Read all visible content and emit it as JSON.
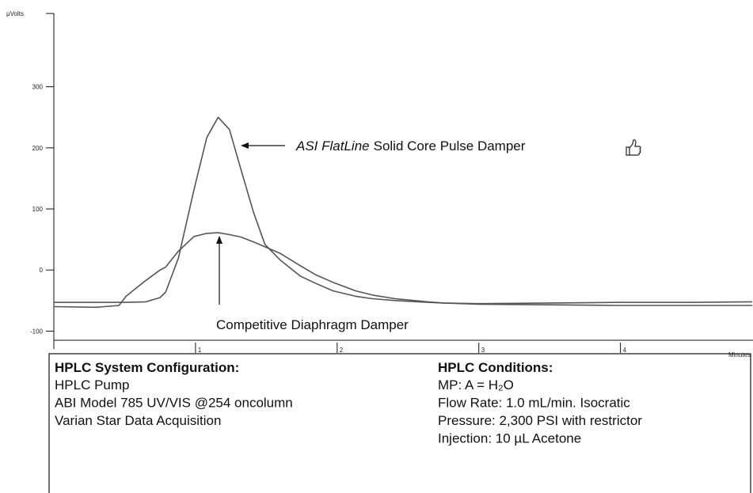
{
  "chart_data": {
    "type": "line",
    "ylabel": "µVolts",
    "xlabel": "Minutes",
    "x": [
      0,
      0.3,
      0.46,
      0.51,
      0.65,
      0.75,
      0.79,
      0.88,
      0.99,
      1.08,
      1.16,
      1.24,
      1.32,
      1.41,
      1.49,
      1.6,
      1.74,
      1.85,
      1.97,
      2.13,
      2.25,
      2.41,
      2.64,
      2.75,
      3,
      3.5,
      4,
      4.5,
      4.93
    ],
    "series": [
      {
        "color": "#555555",
        "values": [
          -53,
          -53,
          -53,
          -53,
          -52,
          -45,
          -36,
          20,
          132,
          217,
          250,
          230,
          165,
          94,
          42,
          16,
          -10,
          -22,
          -34,
          -43,
          -47,
          -50,
          -53,
          -54,
          -55,
          -54,
          -53,
          -53,
          -52
        ]
      },
      {
        "color": "#555555",
        "values": [
          -60,
          -61,
          -58,
          -43,
          -17,
          0,
          5,
          31,
          55,
          60,
          61,
          58,
          54,
          46,
          38,
          27,
          7,
          -8,
          -20,
          -34,
          -41,
          -47,
          -52,
          -54,
          -56,
          -57,
          -58,
          -58,
          -58
        ]
      }
    ],
    "xlim": [
      0,
      4.93
    ],
    "xticks": [
      1,
      2,
      3,
      4
    ],
    "ylim": [
      -115,
      420
    ],
    "yticks": [
      -100,
      0,
      100,
      200,
      300
    ],
    "annotations": [
      {
        "italic": "ASI FlatLine",
        "text": "Solid Core Pulse Damper"
      },
      {
        "text": "Competitive Diaphragm Damper"
      }
    ]
  },
  "info_box": {
    "left": {
      "title": "HPLC System Configuration:",
      "lines": [
        "HPLC Pump",
        "ABI Model 785 UV/VIS @254 oncolumn",
        "Varian Star Data Acquisition"
      ]
    },
    "right": {
      "title": "HPLC Conditions:",
      "lines": [
        "MP: A = H₂O",
        "Flow Rate:  1.0 mL/min.  Isocratic",
        "Pressure:  2,300 PSI with restrictor",
        "Injection:  10 µL Acetone"
      ]
    }
  }
}
